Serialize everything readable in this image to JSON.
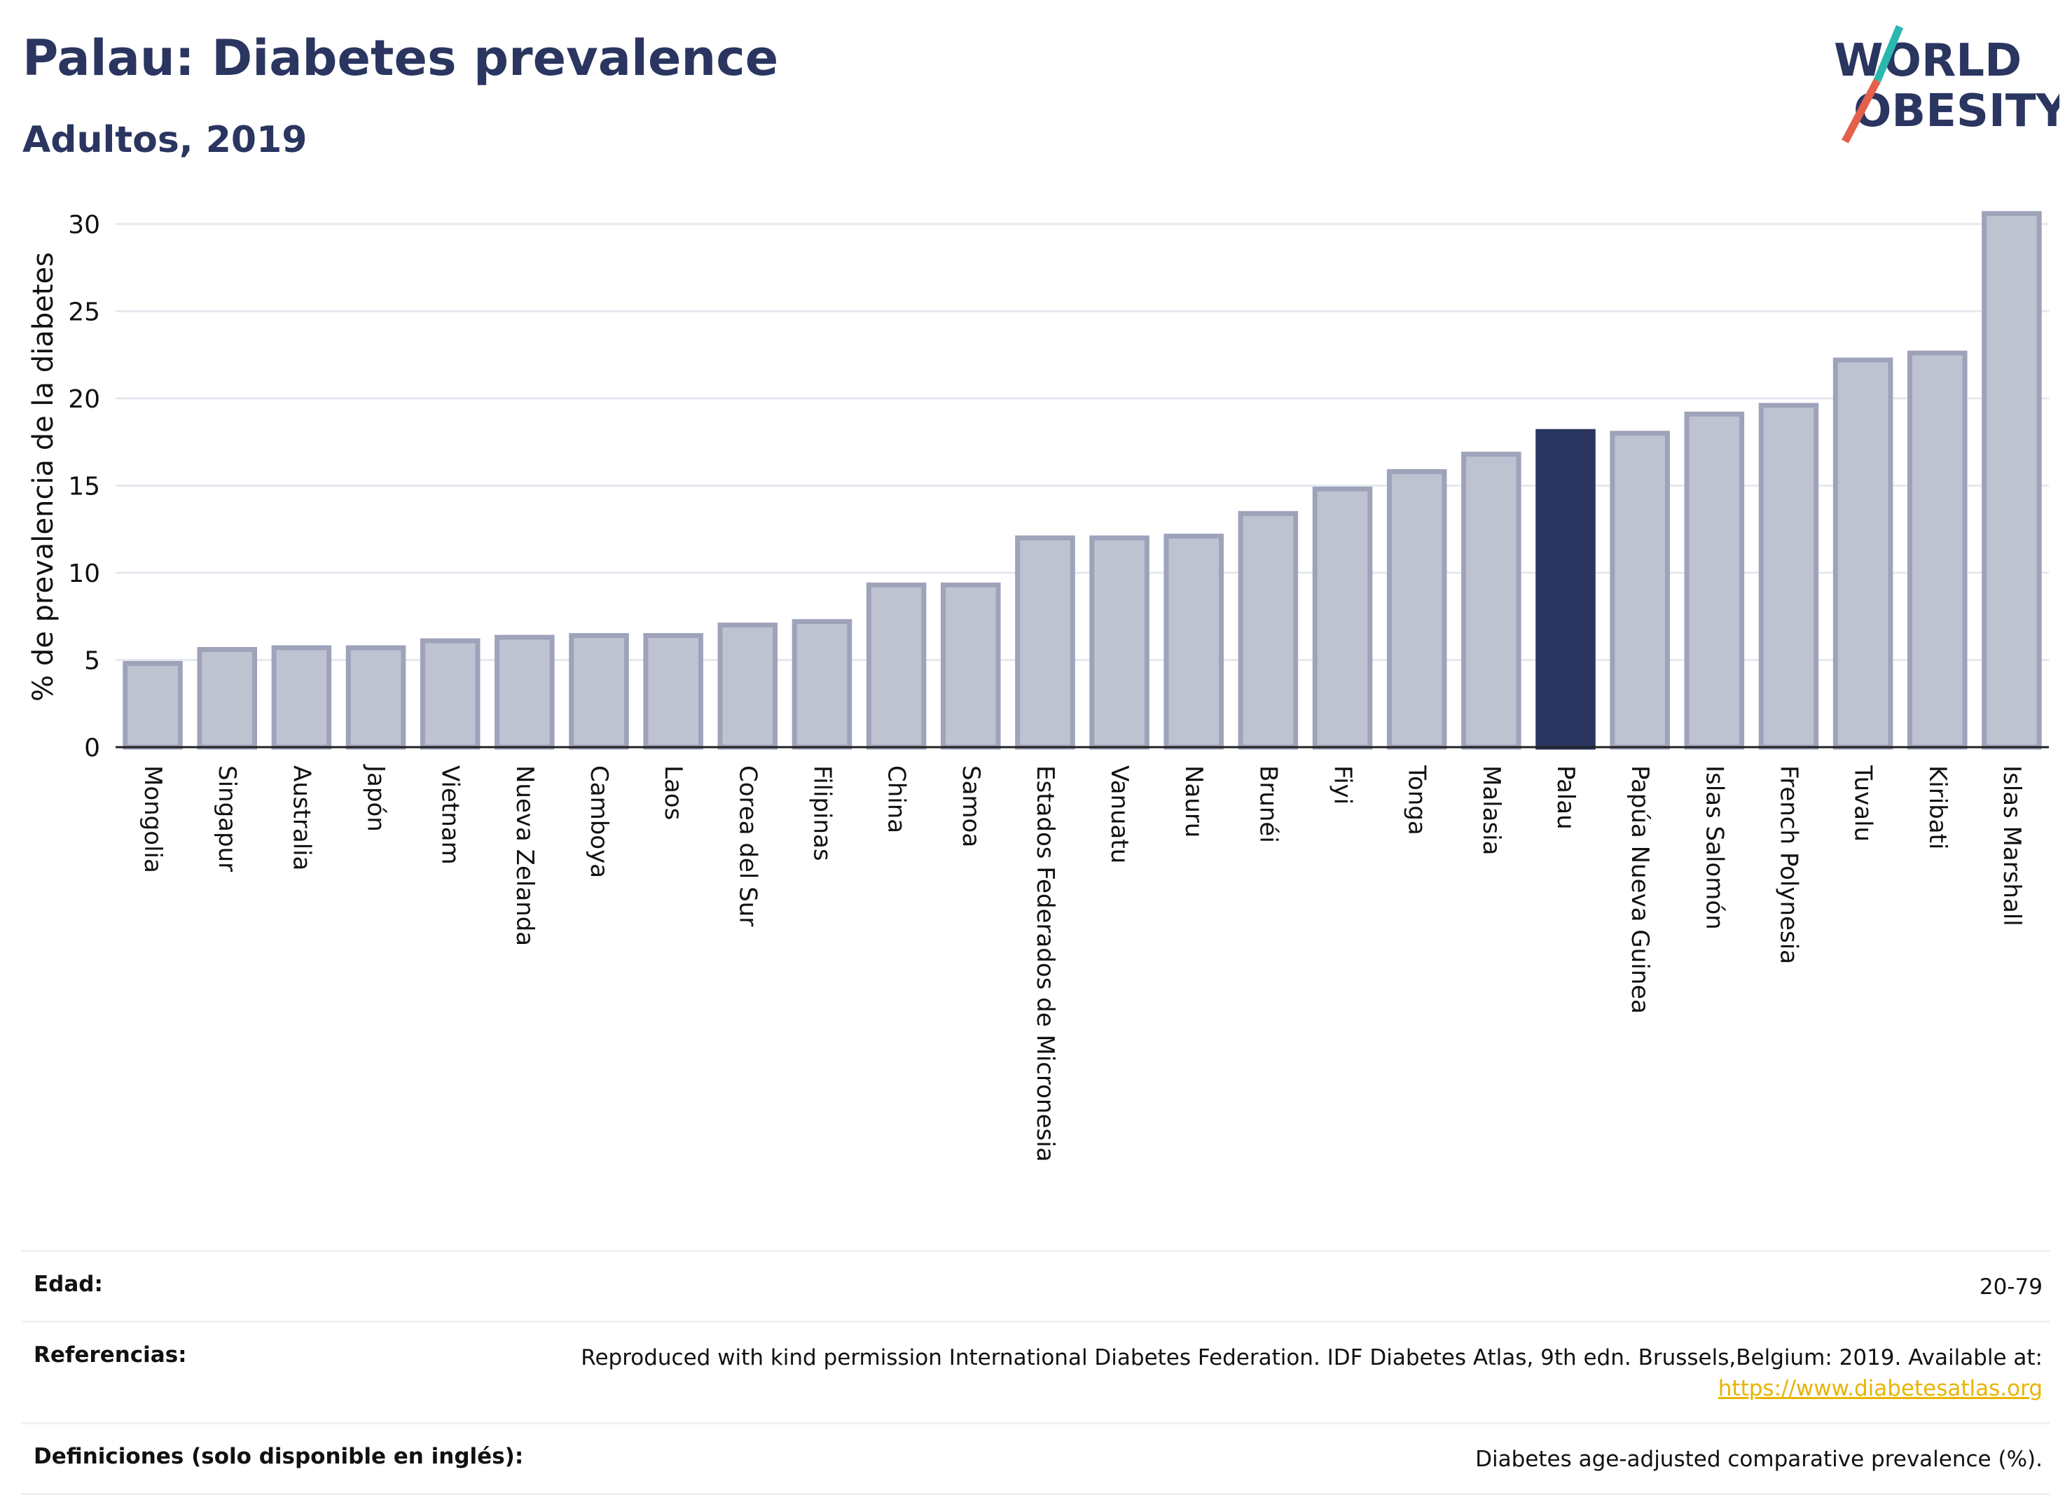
{
  "header": {
    "title": "Palau: Diabetes prevalence",
    "subtitle": "Adultos, 2019"
  },
  "logo": {
    "line1": "WORLD",
    "line2": "OBESITY",
    "slash_colors": [
      "#2ab7b0",
      "#e3604d"
    ],
    "text_color": "#2a3560"
  },
  "colors": {
    "bar": "#bfc3d1",
    "bar_stroke": "#9ea3ba",
    "highlight": "#2a3560",
    "grid": "#e6e8ef"
  },
  "chart_data": {
    "type": "bar",
    "ylabel": "% de prevalencia de la diabetes",
    "ylim": [
      0,
      31
    ],
    "yticks": [
      0,
      5,
      10,
      15,
      20,
      25,
      30
    ],
    "grid": true,
    "highlight": "Palau",
    "categories": [
      "Mongolia",
      "Singapur",
      "Australia",
      "Japón",
      "Vietnam",
      "Nueva Zelanda",
      "Camboya",
      "Laos",
      "Corea del Sur",
      "Filipinas",
      "China",
      "Samoa",
      "Estados Federados de Micronesia",
      "Vanuatu",
      "Nauru",
      "Brunéi",
      "Fiyi",
      "Tonga",
      "Malasia",
      "Palau",
      "Papúa Nueva Guinea",
      "Islas Salomón",
      "French Polynesia",
      "Tuvalu",
      "Kiribati",
      "Islas Marshall"
    ],
    "values": [
      4.8,
      5.6,
      5.7,
      5.7,
      6.1,
      6.3,
      6.4,
      6.4,
      7.0,
      7.2,
      9.3,
      9.3,
      12.0,
      12.0,
      12.1,
      13.4,
      14.8,
      15.8,
      16.8,
      18.1,
      18.0,
      19.1,
      19.6,
      22.2,
      22.6,
      30.6
    ]
  },
  "table": {
    "age_label": "Edad:",
    "age_value": "20-79",
    "ref_label": "Referencias:",
    "ref_text": "Reproduced with kind permission International Diabetes Federation. IDF Diabetes Atlas, 9th edn. Brussels,Belgium: 2019. Available at:",
    "ref_link": "https://www.diabetesatlas.org",
    "def_label": "Definiciones (solo disponible en inglés):",
    "def_text": "Diabetes age-adjusted comparative prevalence (%)."
  }
}
